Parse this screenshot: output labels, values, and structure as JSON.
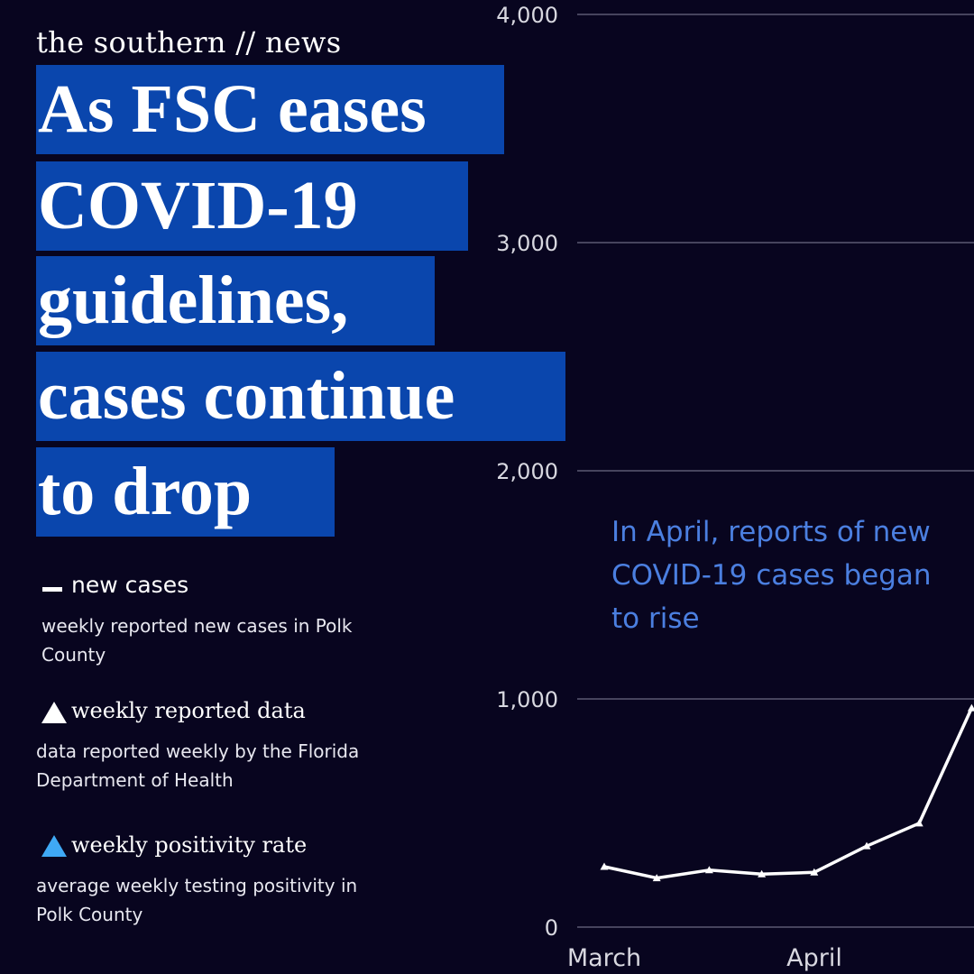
{
  "brand": "the southern // news",
  "headline": [
    "As FSC eases",
    "COVID-19",
    "guidelines,",
    "cases continue",
    "to drop"
  ],
  "legend": {
    "new_cases": {
      "title": "new cases",
      "desc": "weekly reported new cases in Polk County"
    },
    "weekly_reported": {
      "title": "weekly reported data",
      "desc": "data reported weekly by the Florida Department of Health"
    },
    "positivity": {
      "title": "weekly positivity rate",
      "desc": "average weekly testing positivity in Polk County"
    }
  },
  "annotation": "In April, reports of new COVID-19 cases began to rise",
  "colors": {
    "background": "#08051f",
    "headline_bg": "#0a46ad",
    "line": "#ffffff",
    "annotation": "#4b7fe0",
    "positivity_marker": "#3fa9f5",
    "gridline": "#5a5a72"
  },
  "chart_data": {
    "type": "line",
    "title": "",
    "xlabel": "",
    "ylabel": "",
    "ylim": [
      0,
      4000
    ],
    "y_ticks": [
      0,
      1000,
      2000,
      3000,
      4000
    ],
    "y_tick_labels": [
      "0",
      "1,000",
      "2,000",
      "3,000",
      "4,000"
    ],
    "x_tick_labels": [
      "March",
      "April"
    ],
    "grid": true,
    "series": [
      {
        "name": "new cases",
        "marker": "triangle",
        "values": [
          265,
          215,
          250,
          232,
          240,
          355,
          455,
          960
        ]
      }
    ]
  }
}
